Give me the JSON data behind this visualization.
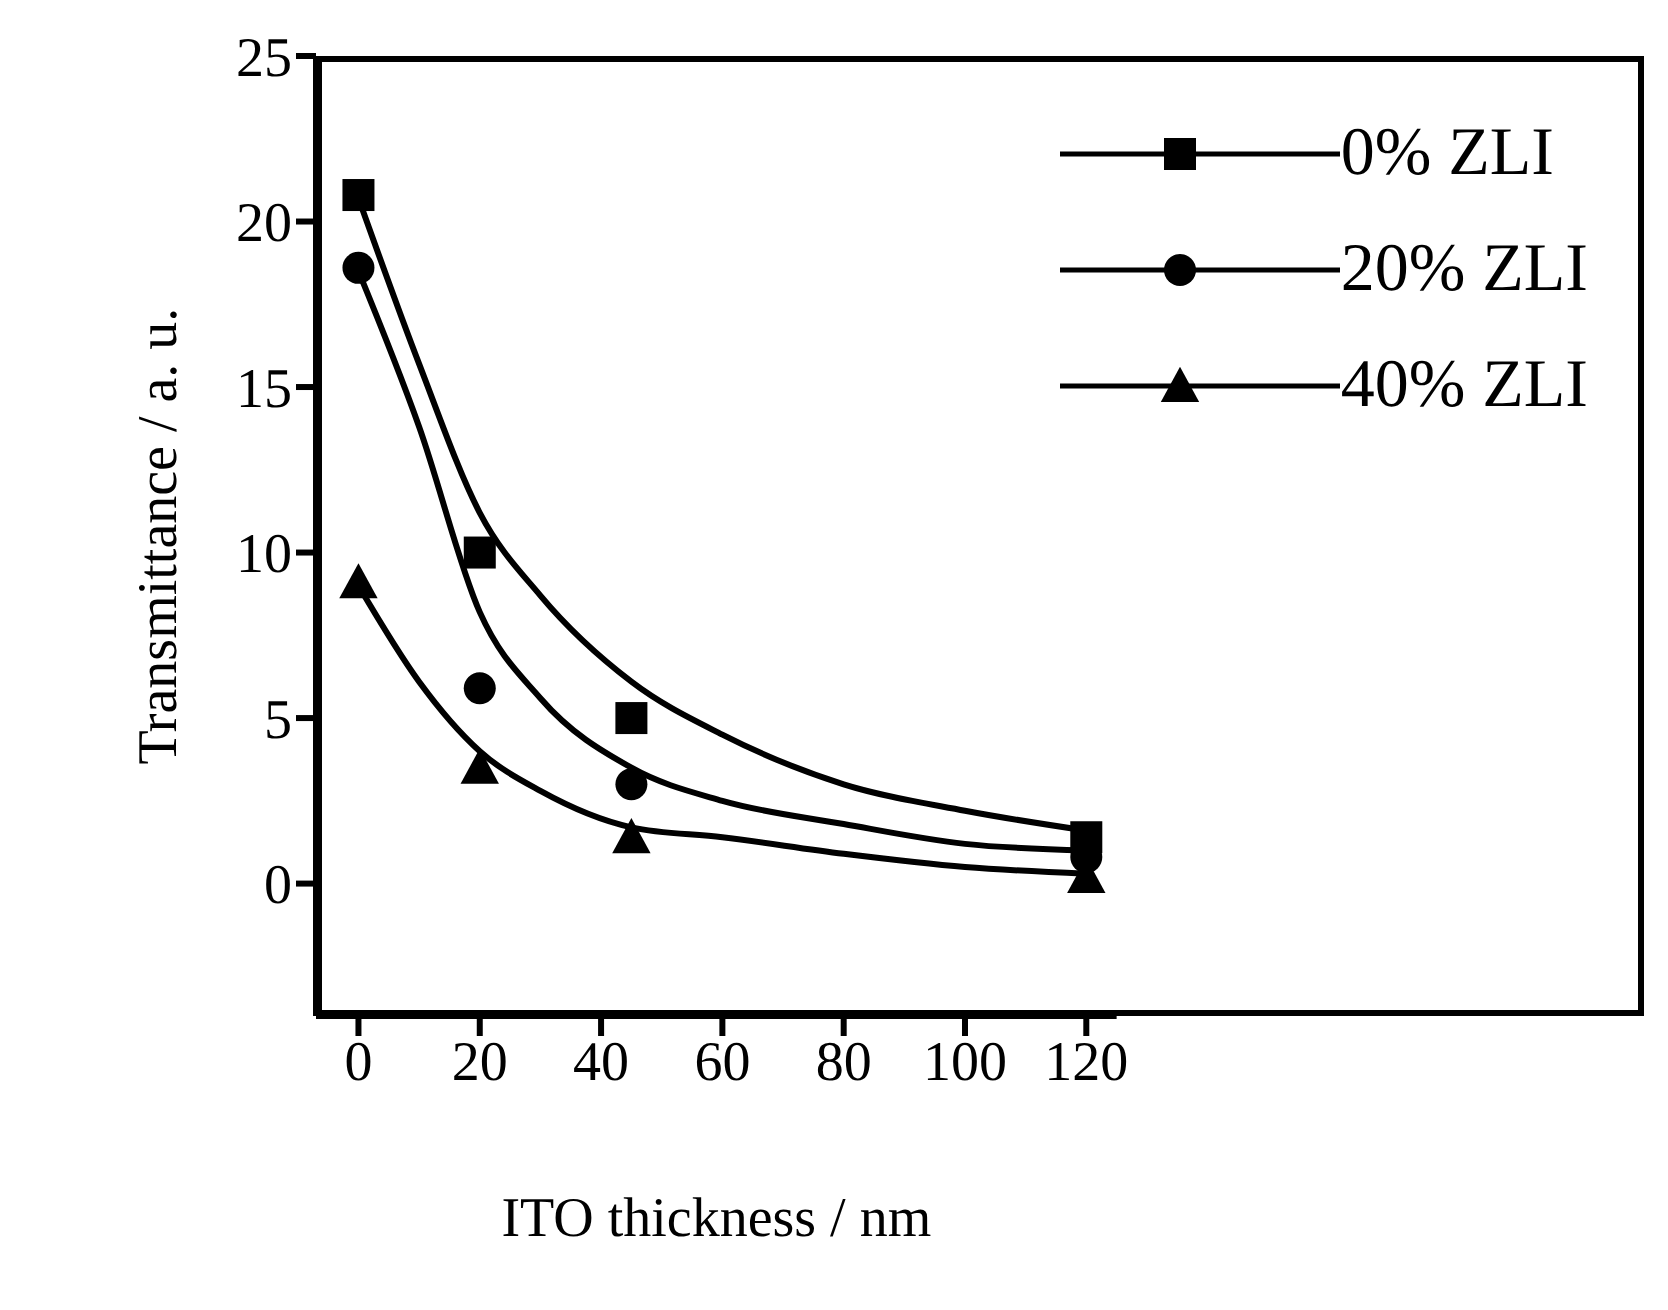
{
  "chart_data": {
    "type": "scatter",
    "xlabel": "ITO thickness / nm",
    "ylabel": "Transmittance / a. u.",
    "xlim": [
      -7,
      125
    ],
    "xticks": [
      0,
      20,
      40,
      60,
      80,
      100,
      120
    ],
    "ylim": [
      -4,
      25
    ],
    "yticks": [
      0,
      5,
      10,
      15,
      20,
      25
    ],
    "legend": "top right",
    "grid": false,
    "series": [
      {
        "name": "0% ZLI",
        "color": "#000000",
        "marker": "square",
        "x": [
          0,
          20,
          45,
          120
        ],
        "values": [
          20.8,
          10,
          5,
          1.4
        ]
      },
      {
        "name": "20% ZLI",
        "color": "#000000",
        "marker": "circle",
        "x": [
          0,
          20,
          45,
          120
        ],
        "values": [
          18.6,
          5.9,
          3,
          0.8
        ]
      },
      {
        "name": "40% ZLI",
        "color": "#000000",
        "marker": "triangle",
        "x": [
          0,
          20,
          45,
          120
        ],
        "values": [
          9.1,
          3.5,
          1.4,
          0.2
        ]
      },
      {
        "type": "line",
        "color": "#000000",
        "marker": "none",
        "x": [
          0,
          10,
          20,
          30,
          45,
          60,
          80,
          100,
          120
        ],
        "values": [
          20.7,
          15.7,
          11.2,
          8.7,
          6.1,
          4.5,
          3.0,
          2.2,
          1.6
        ]
      },
      {
        "type": "line",
        "color": "#000000",
        "marker": "none",
        "x": [
          0,
          10,
          20,
          30,
          45,
          60,
          80,
          100,
          120
        ],
        "values": [
          18.5,
          13.8,
          8.2,
          5.6,
          3.5,
          2.5,
          1.8,
          1.2,
          1.0
        ]
      },
      {
        "type": "line",
        "color": "#000000",
        "marker": "none",
        "x": [
          0,
          10,
          20,
          30,
          45,
          60,
          80,
          100,
          120
        ],
        "values": [
          9.0,
          6.1,
          4.0,
          2.8,
          1.7,
          1.4,
          0.9,
          0.5,
          0.3
        ]
      }
    ]
  }
}
